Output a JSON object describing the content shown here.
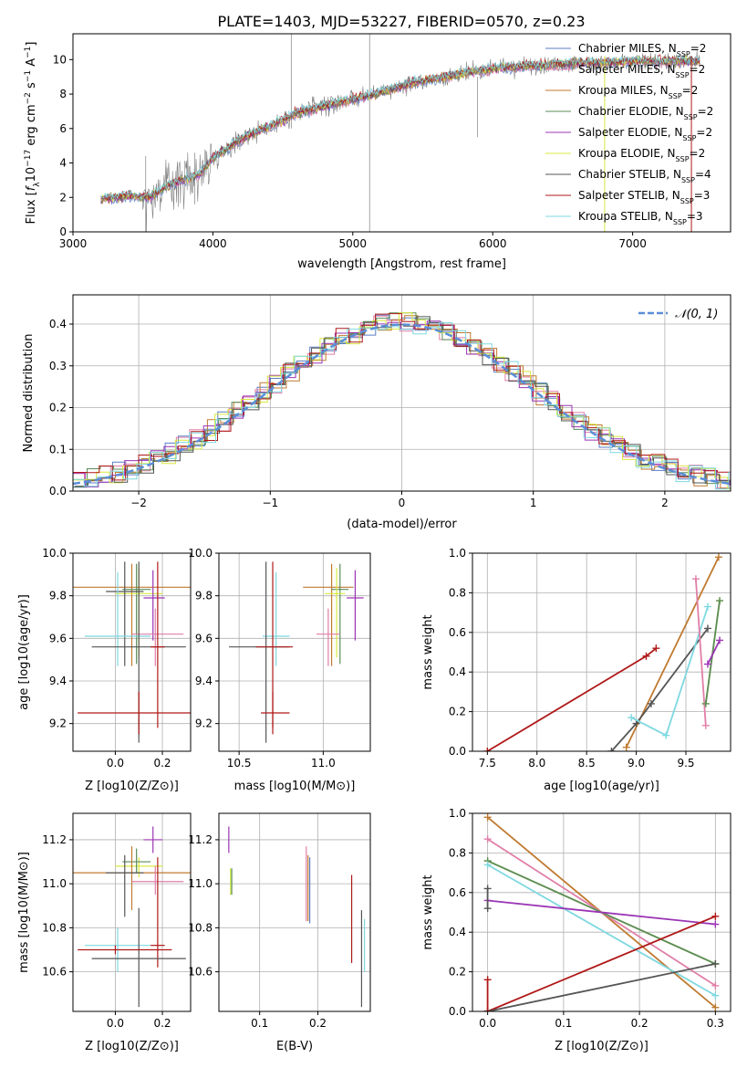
{
  "figure_title": "PLATE=1403, MJD=53227, FIBERID=0570, z=0.23",
  "colors": {
    "chabrier_miles": "#5b7fc5",
    "salpeter_miles": "#e07fa8",
    "kroupa_miles": "#c07a30",
    "chabrier_elodie": "#5a8c5a",
    "salpeter_elodie": "#9b35b5",
    "kroupa_elodie": "#d8e840",
    "chabrier_stelib": "#555555",
    "salpeter_stelib": "#b01818",
    "kroupa_stelib": "#7ed8e0",
    "gaussian": "#5b8ed8",
    "grid": "#b0b0b0"
  },
  "chart_data": [
    {
      "id": "spectrum",
      "type": "line",
      "xlabel": "wavelength [Angstrom, rest frame]",
      "ylabel": "Flux [f_λ10^-17 erg cm^-2 s^-1 A^-1]",
      "xlim": [
        3000,
        7700
      ],
      "ylim": [
        0,
        11.5
      ],
      "xticks": [
        3000,
        4000,
        5000,
        6000,
        7000
      ],
      "yticks": [
        0,
        2,
        4,
        6,
        8,
        10
      ],
      "grid": false,
      "legend_position": "upper right",
      "continuum": {
        "x": [
          3200,
          3400,
          3550,
          3700,
          3900,
          4000,
          4200,
          4400,
          4600,
          4800,
          5000,
          5200,
          5400,
          5600,
          5800,
          6000,
          6200,
          6400,
          6600,
          6800,
          7000,
          7200,
          7400
        ],
        "y": [
          1.9,
          2.1,
          2.0,
          2.8,
          3.3,
          4.3,
          5.4,
          6.1,
          6.9,
          7.3,
          7.7,
          8.1,
          8.6,
          8.9,
          9.2,
          9.5,
          9.6,
          9.7,
          9.8,
          9.8,
          9.9,
          9.9,
          9.9
        ]
      },
      "series": [
        {
          "name": "Chabrier MILES, N_SSP=2",
          "color_key": "chabrier_miles"
        },
        {
          "name": "Salpeter MILES, N_SSP=2",
          "color_key": "salpeter_miles"
        },
        {
          "name": "Kroupa MILES, N_SSP=2",
          "color_key": "kroupa_miles"
        },
        {
          "name": "Chabrier ELODIE, N_SSP=2",
          "color_key": "chabrier_elodie"
        },
        {
          "name": "Salpeter ELODIE, N_SSP=2",
          "color_key": "salpeter_elodie"
        },
        {
          "name": "Kroupa ELODIE, N_SSP=2",
          "color_key": "kroupa_elodie"
        },
        {
          "name": "Chabrier STELIB, N_SSP=4",
          "color_key": "chabrier_stelib"
        },
        {
          "name": "Salpeter STELIB, N_SSP=3",
          "color_key": "salpeter_stelib"
        },
        {
          "name": "Kroupa STELIB, N_SSP=3",
          "color_key": "kroupa_stelib"
        }
      ]
    },
    {
      "id": "residuals",
      "type": "histogram",
      "xlabel": "(data-model)/error",
      "ylabel": "Normed distribution",
      "xlim": [
        -2.5,
        2.5
      ],
      "ylim": [
        0,
        0.47
      ],
      "xticks": [
        -2,
        -1,
        0,
        1,
        2
      ],
      "yticks": [
        0.0,
        0.1,
        0.2,
        0.3,
        0.4
      ],
      "grid": true,
      "legend": [
        {
          "name": "𝒩(0, 1)",
          "color_key": "gaussian",
          "style": "dashed"
        }
      ],
      "legend_position": "upper right",
      "bin_width": 0.1
    },
    {
      "id": "age_vs_Z",
      "type": "errorbar",
      "xlabel": "Z [log10(Z/Z⊙)]",
      "ylabel": "age  [log10(age/yr)]",
      "xlim": [
        -0.18,
        0.32
      ],
      "ylim": [
        9.07,
        10.0
      ],
      "xticks": [
        0.0,
        0.2
      ],
      "yticks": [
        9.2,
        9.4,
        9.6,
        9.8,
        10.0
      ],
      "grid": true,
      "points": [
        {
          "color_key": "kroupa_miles",
          "x": 0.07,
          "xerr": [
            0.25,
            0.25
          ],
          "y": 9.84,
          "yerr": [
            0.37,
            0.11
          ]
        },
        {
          "color_key": "chabrier_elodie",
          "x": 0.09,
          "xerr": [
            0.06,
            0.06
          ],
          "y": 9.83,
          "yerr": [
            0.35,
            0.12
          ]
        },
        {
          "color_key": "kroupa_elodie",
          "x": 0.1,
          "xerr": [
            0.1,
            0.1
          ],
          "y": 9.81,
          "yerr": [
            0.3,
            0.12
          ]
        },
        {
          "color_key": "salpeter_elodie",
          "x": 0.16,
          "xerr": [
            0.04,
            0.05
          ],
          "y": 9.79,
          "yerr": [
            0.2,
            0.13
          ]
        },
        {
          "color_key": "chabrier_stelib",
          "x": 0.04,
          "xerr": [
            0.08,
            0.08
          ],
          "y": 9.82,
          "yerr": [
            0.35,
            0.14
          ]
        },
        {
          "color_key": "salpeter_miles",
          "x": 0.17,
          "xerr": [
            0.1,
            0.12
          ],
          "y": 9.62,
          "yerr": [
            0.15,
            0.12
          ]
        },
        {
          "color_key": "kroupa_stelib",
          "x": 0.01,
          "xerr": [
            0.14,
            0.14
          ],
          "y": 9.61,
          "yerr": [
            0.14,
            0.3
          ]
        },
        {
          "color_key": "chabrier_stelib",
          "x": 0.1,
          "xerr": [
            0.2,
            0.2
          ],
          "y": 9.56,
          "yerr": [
            0.45,
            0.4
          ]
        },
        {
          "color_key": "salpeter_stelib",
          "x": 0.18,
          "xerr": [
            0.03,
            0.03
          ],
          "y": 9.56,
          "yerr": [
            0.38,
            0.4
          ]
        },
        {
          "color_key": "salpeter_stelib",
          "x": 0.1,
          "xerr": [
            0.26,
            0.24
          ],
          "y": 9.25,
          "yerr": [
            0.1,
            0.1
          ]
        }
      ]
    },
    {
      "id": "age_vs_mass",
      "type": "errorbar",
      "xlabel": "mass [log10(M/M⊙)]",
      "xlim": [
        10.38,
        11.28
      ],
      "ylim": [
        9.07,
        10.0
      ],
      "xticks": [
        10.5,
        11.0
      ],
      "yticks": [
        9.2,
        9.4,
        9.6,
        9.8,
        10.0
      ],
      "grid": true,
      "points": [
        {
          "color_key": "kroupa_miles",
          "x": 11.05,
          "xerr": [
            0.17,
            0.13
          ],
          "y": 9.84,
          "yerr": [
            0.37,
            0.11
          ]
        },
        {
          "color_key": "chabrier_elodie",
          "x": 11.1,
          "xerr": [
            0.05,
            0.05
          ],
          "y": 9.83,
          "yerr": [
            0.35,
            0.12
          ]
        },
        {
          "color_key": "kroupa_elodie",
          "x": 11.08,
          "xerr": [
            0.07,
            0.05
          ],
          "y": 9.81,
          "yerr": [
            0.3,
            0.12
          ]
        },
        {
          "color_key": "salpeter_elodie",
          "x": 11.19,
          "xerr": [
            0.05,
            0.05
          ],
          "y": 9.79,
          "yerr": [
            0.2,
            0.13
          ]
        },
        {
          "color_key": "salpeter_miles",
          "x": 11.03,
          "xerr": [
            0.07,
            0.07
          ],
          "y": 9.62,
          "yerr": [
            0.15,
            0.12
          ]
        },
        {
          "color_key": "kroupa_stelib",
          "x": 10.72,
          "xerr": [
            0.08,
            0.08
          ],
          "y": 9.61,
          "yerr": [
            0.14,
            0.3
          ]
        },
        {
          "color_key": "chabrier_stelib",
          "x": 10.66,
          "xerr": [
            0.22,
            0.14
          ],
          "y": 9.56,
          "yerr": [
            0.45,
            0.4
          ]
        },
        {
          "color_key": "salpeter_stelib",
          "x": 10.7,
          "xerr": [
            0.1,
            0.12
          ],
          "y": 9.56,
          "yerr": [
            0.38,
            0.4
          ]
        },
        {
          "color_key": "salpeter_stelib",
          "x": 10.7,
          "xerr": [
            0.07,
            0.1
          ],
          "y": 9.25,
          "yerr": [
            0.1,
            0.1
          ]
        }
      ]
    },
    {
      "id": "weight_vs_age",
      "type": "line",
      "xlabel": "age  [log10(age/yr)]",
      "ylabel": "mass weight",
      "xlim": [
        7.35,
        9.95
      ],
      "ylim": [
        0,
        1.0
      ],
      "xticks": [
        7.5,
        8.0,
        8.5,
        9.0,
        9.5
      ],
      "yticks": [
        0.0,
        0.2,
        0.4,
        0.6,
        0.8,
        1.0
      ],
      "grid": true,
      "series": [
        {
          "color_key": "salpeter_stelib",
          "x": [
            7.5,
            9.1,
            9.2
          ],
          "y": [
            0.0,
            0.48,
            0.52
          ]
        },
        {
          "color_key": "kroupa_miles",
          "x": [
            8.9,
            9.83
          ],
          "y": [
            0.02,
            0.98
          ]
        },
        {
          "color_key": "chabrier_stelib",
          "x": [
            8.75,
            9.0,
            9.15,
            9.72
          ],
          "y": [
            0.0,
            0.14,
            0.24,
            0.62
          ]
        },
        {
          "color_key": "kroupa_stelib",
          "x": [
            8.95,
            9.3,
            9.72
          ],
          "y": [
            0.17,
            0.08,
            0.73
          ]
        },
        {
          "color_key": "salpeter_miles",
          "x": [
            9.6,
            9.7
          ],
          "y": [
            0.87,
            0.13
          ]
        },
        {
          "color_key": "kroupa_elodie",
          "x": [
            9.7,
            9.84
          ],
          "y": [
            0.24,
            0.76
          ]
        },
        {
          "color_key": "chabrier_elodie",
          "x": [
            9.7,
            9.84
          ],
          "y": [
            0.24,
            0.76
          ]
        },
        {
          "color_key": "salpeter_elodie",
          "x": [
            9.72,
            9.84
          ],
          "y": [
            0.44,
            0.56
          ]
        }
      ]
    },
    {
      "id": "mass_vs_Z",
      "type": "errorbar",
      "xlabel": "Z [log10(Z/Z⊙)]",
      "ylabel": "mass [log10(M/M⊙)]",
      "xlim": [
        -0.18,
        0.32
      ],
      "ylim": [
        10.42,
        11.32
      ],
      "xticks": [
        0.0,
        0.2
      ],
      "yticks": [
        10.6,
        10.8,
        11.0,
        11.2
      ],
      "grid": true,
      "points": [
        {
          "color_key": "salpeter_elodie",
          "x": 0.16,
          "xerr": [
            0.04,
            0.04
          ],
          "y": 11.2,
          "yerr": [
            0.06,
            0.06
          ]
        },
        {
          "color_key": "kroupa_elodie",
          "x": 0.1,
          "xerr": [
            0.1,
            0.1
          ],
          "y": 11.08,
          "yerr": [
            0.05,
            0.04
          ]
        },
        {
          "color_key": "chabrier_elodie",
          "x": 0.09,
          "xerr": [
            0.06,
            0.06
          ],
          "y": 11.1,
          "yerr": [
            0.05,
            0.06
          ]
        },
        {
          "color_key": "kroupa_miles",
          "x": 0.07,
          "xerr": [
            0.25,
            0.25
          ],
          "y": 11.05,
          "yerr": [
            0.17,
            0.12
          ]
        },
        {
          "color_key": "chabrier_stelib",
          "x": 0.04,
          "xerr": [
            0.08,
            0.08
          ],
          "y": 11.05,
          "yerr": [
            0.2,
            0.08
          ]
        },
        {
          "color_key": "salpeter_miles",
          "x": 0.17,
          "xerr": [
            0.1,
            0.12
          ],
          "y": 11.01,
          "yerr": [
            0.06,
            0.07
          ]
        },
        {
          "color_key": "kroupa_stelib",
          "x": 0.01,
          "xerr": [
            0.14,
            0.14
          ],
          "y": 10.72,
          "yerr": [
            0.12,
            0.08
          ]
        },
        {
          "color_key": "salpeter_stelib",
          "x": 0.18,
          "xerr": [
            0.03,
            0.03
          ],
          "y": 10.72,
          "yerr": [
            0.1,
            0.4
          ]
        },
        {
          "color_key": "chabrier_stelib",
          "x": 0.1,
          "xerr": [
            0.2,
            0.2
          ],
          "y": 10.66,
          "yerr": [
            0.22,
            0.23
          ]
        },
        {
          "color_key": "salpeter_stelib",
          "x": 0.0,
          "xerr": [
            0.16,
            0.24
          ],
          "y": 10.7,
          "yerr": [
            0.02,
            0.02
          ]
        }
      ]
    },
    {
      "id": "mass_vs_EBV",
      "type": "errorbar",
      "xlabel": "E(B-V)",
      "xlim": [
        0.03,
        0.29
      ],
      "ylim": [
        10.42,
        11.32
      ],
      "xticks": [
        0.1,
        0.2
      ],
      "yticks": [
        10.6,
        10.8,
        11.0,
        11.2
      ],
      "grid": true,
      "points": [
        {
          "color_key": "salpeter_elodie",
          "x": 0.047,
          "y": 11.2,
          "yerr": [
            0.06,
            0.06
          ]
        },
        {
          "color_key": "kroupa_elodie",
          "x": 0.05,
          "y": 11.01,
          "yerr": [
            0.06,
            0.06
          ]
        },
        {
          "color_key": "chabrier_elodie",
          "x": 0.052,
          "y": 11.01,
          "yerr": [
            0.06,
            0.06
          ]
        },
        {
          "color_key": "salpeter_miles",
          "x": 0.18,
          "y": 11.01,
          "yerr": [
            0.18,
            0.16
          ]
        },
        {
          "color_key": "chabrier_miles",
          "x": 0.186,
          "y": 10.97,
          "yerr": [
            0.15,
            0.15
          ]
        },
        {
          "color_key": "kroupa_miles",
          "x": 0.183,
          "y": 10.98,
          "yerr": [
            0.15,
            0.15
          ]
        },
        {
          "color_key": "salpeter_stelib",
          "x": 0.258,
          "y": 10.84,
          "yerr": [
            0.2,
            0.2
          ]
        },
        {
          "color_key": "chabrier_stelib",
          "x": 0.275,
          "y": 10.66,
          "yerr": [
            0.22,
            0.22
          ]
        },
        {
          "color_key": "kroupa_stelib",
          "x": 0.28,
          "y": 10.72,
          "yerr": [
            0.12,
            0.12
          ]
        }
      ]
    },
    {
      "id": "weight_vs_Z",
      "type": "line",
      "xlabel": "Z [log10(Z/Z⊙)]",
      "ylabel": "mass weight",
      "xlim": [
        -0.02,
        0.32
      ],
      "ylim": [
        0,
        1.0
      ],
      "xticks": [
        0.0,
        0.1,
        0.2,
        0.3
      ],
      "yticks": [
        0.0,
        0.2,
        0.4,
        0.6,
        0.8,
        1.0
      ],
      "grid": true,
      "series": [
        {
          "color_key": "kroupa_miles",
          "x": [
            0.0,
            0.3
          ],
          "y": [
            0.98,
            0.02
          ]
        },
        {
          "color_key": "salpeter_miles",
          "x": [
            0.0,
            0.3
          ],
          "y": [
            0.87,
            0.13
          ]
        },
        {
          "color_key": "kroupa_elodie",
          "x": [
            0.0,
            0.3
          ],
          "y": [
            0.76,
            0.24
          ]
        },
        {
          "color_key": "chabrier_elodie",
          "x": [
            0.0,
            0.3
          ],
          "y": [
            0.76,
            0.24
          ]
        },
        {
          "color_key": "kroupa_stelib",
          "x": [
            0.0,
            0.3
          ],
          "y": [
            0.74,
            0.08
          ]
        },
        {
          "color_key": "salpeter_elodie",
          "x": [
            0.0,
            0.3
          ],
          "y": [
            0.56,
            0.44
          ]
        },
        {
          "color_key": "salpeter_stelib",
          "x": [
            0.0,
            0.3
          ],
          "y": [
            0.0,
            0.48
          ]
        },
        {
          "color_key": "chabrier_stelib",
          "x": [
            0.0,
            0.3
          ],
          "y": [
            0.0,
            0.24
          ]
        },
        {
          "color_key": "chabrier_stelib",
          "x": [
            0.0,
            0.0
          ],
          "y": [
            0.52,
            0.62
          ]
        },
        {
          "color_key": "salpeter_stelib",
          "x": [
            0.0,
            0.0
          ],
          "y": [
            0.0,
            0.16
          ]
        }
      ]
    }
  ]
}
